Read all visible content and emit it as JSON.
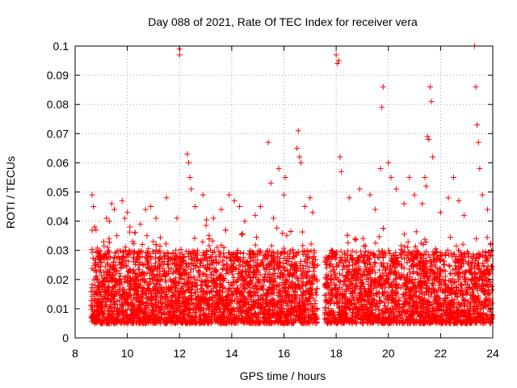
{
  "chart_data": {
    "type": "scatter",
    "title": "Day 088 of 2021, Rate Of TEC Index for receiver vera",
    "xlabel": "GPS time / hours",
    "ylabel": "ROTI / TECUs",
    "xlim": [
      8,
      24
    ],
    "ylim": [
      0,
      0.1
    ],
    "xticks": [
      "8",
      "10",
      "12",
      "14",
      "16",
      "18",
      "20",
      "22",
      "24"
    ],
    "yticks": [
      "0",
      "0.01",
      "0.02",
      "0.03",
      "0.04",
      "0.05",
      "0.06",
      "0.07",
      "0.08",
      "0.09",
      "0.1"
    ],
    "grid": true,
    "marker": "+",
    "color": "#ff0000",
    "data_gap": [
      17.3,
      17.55
    ],
    "series": [
      {
        "name": "ROTI",
        "x": [
          8.65,
          8.7,
          8.75,
          8.8,
          9.2,
          9.25,
          9.3,
          9.4,
          9.5,
          9.6,
          9.8,
          9.9,
          10.0,
          10.1,
          10.2,
          10.3,
          10.5,
          10.7,
          10.75,
          10.9,
          11.1,
          11.5,
          11.9,
          12.0,
          12.0,
          12.3,
          12.35,
          12.4,
          12.45,
          12.6,
          12.9,
          13.3,
          13.6,
          13.9,
          14.1,
          14.3,
          14.5,
          14.9,
          15.1,
          15.4,
          15.5,
          15.6,
          15.8,
          16.0,
          16.05,
          16.5,
          16.55,
          16.6,
          16.65,
          16.8,
          17.0,
          17.1,
          18.0,
          18.05,
          18.1,
          18.15,
          18.2,
          18.5,
          18.9,
          19.3,
          19.5,
          19.7,
          19.75,
          19.8,
          20.0,
          20.1,
          20.3,
          20.6,
          20.8,
          21.0,
          21.3,
          21.4,
          21.45,
          21.5,
          21.55,
          21.6,
          21.65,
          21.7,
          22.0,
          22.3,
          22.5,
          22.7,
          22.9,
          23.3,
          23.35,
          23.4,
          23.45,
          23.5,
          23.6,
          23.8
        ],
        "y": [
          0.049,
          0.045,
          0.038,
          0.037,
          0.041,
          0.031,
          0.034,
          0.046,
          0.044,
          0.035,
          0.047,
          0.041,
          0.043,
          0.038,
          0.033,
          0.036,
          0.039,
          0.044,
          0.035,
          0.045,
          0.041,
          0.048,
          0.041,
          0.099,
          0.097,
          0.063,
          0.06,
          0.055,
          0.051,
          0.045,
          0.049,
          0.041,
          0.044,
          0.049,
          0.047,
          0.045,
          0.04,
          0.042,
          0.045,
          0.067,
          0.053,
          0.041,
          0.058,
          0.049,
          0.055,
          0.065,
          0.071,
          0.062,
          0.06,
          0.045,
          0.048,
          0.043,
          0.097,
          0.094,
          0.095,
          0.062,
          0.057,
          0.048,
          0.051,
          0.049,
          0.044,
          0.058,
          0.079,
          0.086,
          0.06,
          0.055,
          0.051,
          0.046,
          0.055,
          0.049,
          0.046,
          0.055,
          0.052,
          0.069,
          0.068,
          0.086,
          0.081,
          0.062,
          0.043,
          0.048,
          0.055,
          0.047,
          0.042,
          0.1,
          0.086,
          0.073,
          0.067,
          0.058,
          0.049,
          0.044
        ]
      }
    ],
    "dense_band": {
      "description_values": [
        0.005,
        0.03
      ],
      "median_estimate": 0.015
    }
  }
}
